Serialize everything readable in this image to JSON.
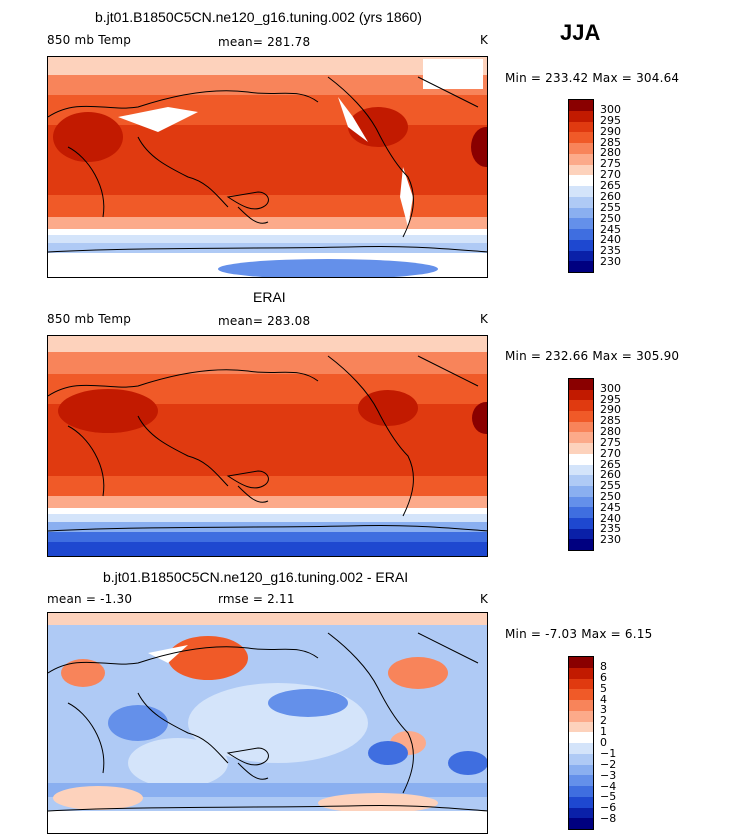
{
  "season": "JJA",
  "panels": [
    {
      "title": "b.jt01.B1850C5CN.ne120_g16.tuning.002 (yrs 1860)",
      "left_label": "850 mb Temp",
      "center_label": "mean=  281.78",
      "units": "K",
      "minmax": "Min = 233.42 Max = 304.64",
      "levels": [
        "300",
        "295",
        "290",
        "285",
        "280",
        "275",
        "270",
        "265",
        "260",
        "255",
        "250",
        "245",
        "240",
        "235",
        "230"
      ],
      "colors": [
        "#8a0000",
        "#c21a00",
        "#e03a10",
        "#f05a28",
        "#f8845a",
        "#fcaa8a",
        "#fdd2bc",
        "#ffffff",
        "#d4e4fa",
        "#afcaf5",
        "#8aaff0",
        "#6490ea",
        "#3f6ee0",
        "#1e48d0",
        "#0a20a8",
        "#000080"
      ]
    },
    {
      "title": "ERAI",
      "left_label": "850 mb Temp",
      "center_label": "mean=  283.08",
      "units": "K",
      "minmax": "Min = 232.66 Max = 305.90",
      "levels": [
        "300",
        "295",
        "290",
        "285",
        "280",
        "275",
        "270",
        "265",
        "260",
        "255",
        "250",
        "245",
        "240",
        "235",
        "230"
      ],
      "colors": [
        "#8a0000",
        "#c21a00",
        "#e03a10",
        "#f05a28",
        "#f8845a",
        "#fcaa8a",
        "#fdd2bc",
        "#ffffff",
        "#d4e4fa",
        "#afcaf5",
        "#8aaff0",
        "#6490ea",
        "#3f6ee0",
        "#1e48d0",
        "#0a20a8",
        "#000080"
      ]
    },
    {
      "title": "b.jt01.B1850C5CN.ne120_g16.tuning.002 - ERAI",
      "left_label": "mean =   -1.30",
      "center_label": "rmse =    2.11",
      "units": "K",
      "minmax": "Min =  -7.03 Max =   6.15",
      "levels": [
        "8",
        "6",
        "5",
        "4",
        "3",
        "2",
        "1",
        "0",
        "−1",
        "−2",
        "−3",
        "−4",
        "−5",
        "−6",
        "−8"
      ],
      "colors": [
        "#8a0000",
        "#c21a00",
        "#e03a10",
        "#f05a28",
        "#f8845a",
        "#fcaa8a",
        "#fdd2bc",
        "#ffffff",
        "#d4e4fa",
        "#afcaf5",
        "#8aaff0",
        "#6490ea",
        "#3f6ee0",
        "#1e48d0",
        "#0a20a8",
        "#000080"
      ]
    }
  ]
}
